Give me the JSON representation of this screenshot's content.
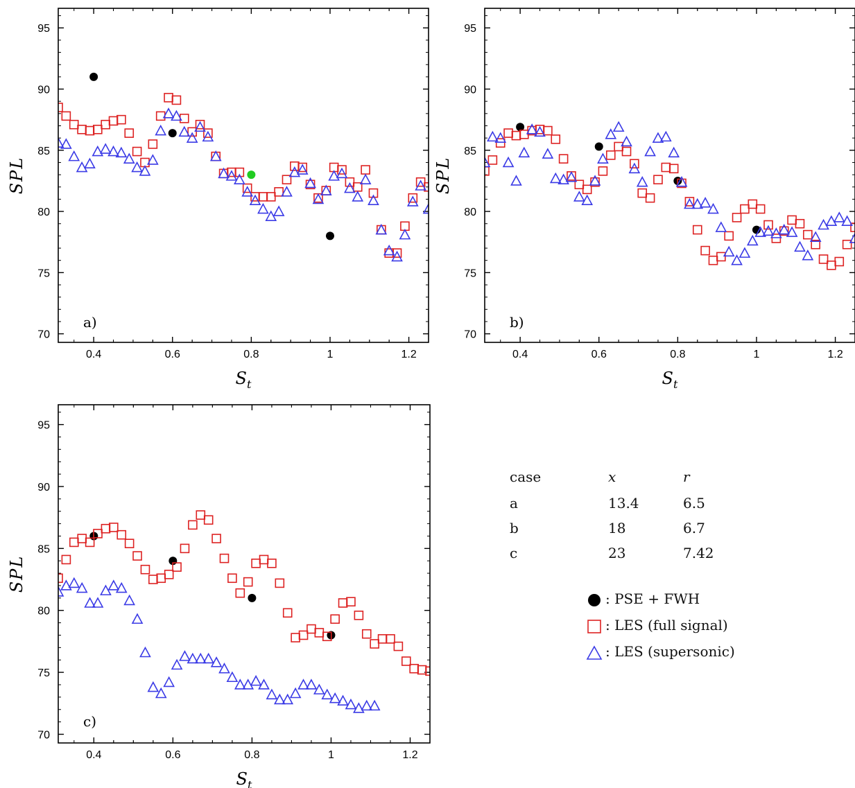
{
  "colors": {
    "pse": "#000000",
    "les_full": "#dd2222",
    "les_super": "#3a3ae6",
    "extra_point": "#22cc22"
  },
  "axes": {
    "xlabel_main": "S",
    "xlabel_sub": "t",
    "ylabel": "SPL",
    "xticks": [
      "0.4",
      "0.6",
      "0.8",
      "1",
      "1.2"
    ],
    "yticks": [
      "70",
      "75",
      "80",
      "85",
      "90",
      "95"
    ],
    "xlim": [
      0.31,
      1.25
    ],
    "ylim": [
      69.3,
      96.6
    ]
  },
  "param_table": {
    "headers": [
      "case",
      "x",
      "r"
    ],
    "rows": [
      [
        "a",
        "13.4",
        "6.5"
      ],
      [
        "b",
        "18",
        "6.7"
      ],
      [
        "c",
        "23",
        "7.42"
      ]
    ]
  },
  "legend": [
    {
      "symbol": "circle",
      "label": ": PSE + FWH"
    },
    {
      "symbol": "square",
      "label": ": LES (full signal)"
    },
    {
      "symbol": "triangle",
      "label": ": LES (supersonic)"
    }
  ],
  "chart_data": [
    {
      "type": "scatter",
      "panel_label": "a)",
      "xlim": [
        0.31,
        1.25
      ],
      "ylim": [
        69.3,
        96.6
      ],
      "series": [
        {
          "name": "PSE + FWH",
          "marker": "circle",
          "x": [
            0.4,
            0.6,
            1.0
          ],
          "y": [
            91.0,
            86.4,
            78.0
          ]
        },
        {
          "marker": "circle-green",
          "x": [
            0.8
          ],
          "y": [
            83.0
          ]
        },
        {
          "name": "LES (full signal)",
          "marker": "square",
          "x": [
            0.31,
            0.33,
            0.35,
            0.37,
            0.39,
            0.41,
            0.43,
            0.45,
            0.47,
            0.49,
            0.51,
            0.53,
            0.55,
            0.57,
            0.59,
            0.61,
            0.63,
            0.65,
            0.67,
            0.69,
            0.71,
            0.73,
            0.75,
            0.77,
            0.79,
            0.81,
            0.83,
            0.85,
            0.87,
            0.89,
            0.91,
            0.93,
            0.95,
            0.97,
            0.99,
            1.01,
            1.03,
            1.05,
            1.07,
            1.09,
            1.11,
            1.13,
            1.15,
            1.17,
            1.19,
            1.21,
            1.23,
            1.25
          ],
          "y": [
            88.5,
            87.8,
            87.1,
            86.7,
            86.6,
            86.7,
            87.1,
            87.4,
            87.5,
            86.4,
            84.9,
            84.0,
            85.5,
            87.8,
            89.3,
            89.1,
            87.6,
            86.5,
            87.1,
            86.4,
            84.5,
            83.1,
            83.2,
            83.2,
            81.9,
            81.2,
            81.2,
            81.2,
            81.6,
            82.6,
            83.7,
            83.6,
            82.2,
            81.1,
            81.7,
            83.6,
            83.4,
            82.4,
            82.0,
            83.4,
            81.5,
            78.5,
            76.6,
            76.6,
            78.8,
            81.1,
            82.4,
            82.0
          ]
        },
        {
          "name": "LES (supersonic)",
          "marker": "triangle",
          "x": [
            0.31,
            0.33,
            0.35,
            0.37,
            0.39,
            0.41,
            0.43,
            0.45,
            0.47,
            0.49,
            0.51,
            0.53,
            0.55,
            0.57,
            0.59,
            0.61,
            0.63,
            0.65,
            0.67,
            0.69,
            0.71,
            0.73,
            0.75,
            0.77,
            0.79,
            0.81,
            0.83,
            0.85,
            0.87,
            0.89,
            0.91,
            0.93,
            0.95,
            0.97,
            0.99,
            1.01,
            1.03,
            1.05,
            1.07,
            1.09,
            1.11,
            1.13,
            1.15,
            1.17,
            1.19,
            1.21,
            1.23,
            1.25
          ],
          "y": [
            85.6,
            85.5,
            84.5,
            83.6,
            83.9,
            84.9,
            85.1,
            84.9,
            84.8,
            84.3,
            83.6,
            83.3,
            84.2,
            86.6,
            88.0,
            87.8,
            86.5,
            86.0,
            86.9,
            86.1,
            84.5,
            83.1,
            82.9,
            82.6,
            81.6,
            80.9,
            80.2,
            79.6,
            80.0,
            81.6,
            83.2,
            83.4,
            82.3,
            81.0,
            81.7,
            82.9,
            83.1,
            81.9,
            81.2,
            82.6,
            80.9,
            78.5,
            76.8,
            76.3,
            78.1,
            80.8,
            82.1,
            80.2
          ]
        }
      ]
    },
    {
      "type": "scatter",
      "panel_label": "b)",
      "xlim": [
        0.31,
        1.25
      ],
      "ylim": [
        69.3,
        96.6
      ],
      "series": [
        {
          "name": "PSE + FWH",
          "marker": "circle",
          "x": [
            0.4,
            0.6,
            0.8,
            1.0
          ],
          "y": [
            86.9,
            85.3,
            82.5,
            78.5
          ]
        },
        {
          "name": "LES (full signal)",
          "marker": "square",
          "x": [
            0.31,
            0.33,
            0.35,
            0.37,
            0.39,
            0.41,
            0.43,
            0.45,
            0.47,
            0.49,
            0.51,
            0.53,
            0.55,
            0.57,
            0.59,
            0.61,
            0.63,
            0.65,
            0.67,
            0.69,
            0.71,
            0.73,
            0.75,
            0.77,
            0.79,
            0.81,
            0.83,
            0.85,
            0.87,
            0.89,
            0.91,
            0.93,
            0.95,
            0.97,
            0.99,
            1.01,
            1.03,
            1.05,
            1.07,
            1.09,
            1.11,
            1.13,
            1.15,
            1.17,
            1.19,
            1.21,
            1.23,
            1.25
          ],
          "y": [
            83.3,
            84.2,
            85.6,
            86.4,
            86.2,
            86.3,
            86.6,
            86.7,
            86.6,
            85.9,
            84.3,
            82.9,
            82.2,
            81.8,
            82.4,
            83.3,
            84.6,
            85.3,
            84.9,
            83.9,
            81.5,
            81.1,
            82.6,
            83.6,
            83.5,
            82.3,
            80.8,
            78.5,
            76.8,
            76.0,
            76.3,
            78.0,
            79.5,
            80.2,
            80.6,
            80.2,
            78.9,
            77.8,
            78.4,
            79.3,
            79.0,
            78.1,
            77.3,
            76.1,
            75.6,
            75.9,
            77.3,
            78.7
          ]
        },
        {
          "name": "LES (supersonic)",
          "marker": "triangle",
          "x": [
            0.31,
            0.33,
            0.35,
            0.37,
            0.39,
            0.41,
            0.43,
            0.45,
            0.47,
            0.49,
            0.51,
            0.53,
            0.55,
            0.57,
            0.59,
            0.61,
            0.63,
            0.65,
            0.67,
            0.69,
            0.71,
            0.73,
            0.75,
            0.77,
            0.79,
            0.81,
            0.83,
            0.85,
            0.87,
            0.89,
            0.91,
            0.93,
            0.95,
            0.97,
            0.99,
            1.01,
            1.03,
            1.05,
            1.07,
            1.09,
            1.11,
            1.13,
            1.15,
            1.17,
            1.19,
            1.21,
            1.23,
            1.25
          ],
          "y": [
            84.0,
            86.1,
            86.0,
            84.0,
            82.5,
            84.8,
            86.7,
            86.5,
            84.7,
            82.7,
            82.6,
            82.8,
            81.2,
            80.9,
            82.5,
            84.3,
            86.3,
            86.9,
            85.7,
            83.5,
            82.4,
            84.9,
            86.0,
            86.1,
            84.8,
            82.4,
            80.6,
            80.6,
            80.7,
            80.2,
            78.7,
            76.7,
            76.0,
            76.6,
            77.6,
            78.3,
            78.4,
            78.2,
            78.5,
            78.3,
            77.1,
            76.4,
            77.9,
            78.9,
            79.2,
            79.5,
            79.2,
            77.8
          ]
        }
      ]
    },
    {
      "type": "scatter",
      "panel_label": "c)",
      "xlim": [
        0.31,
        1.25
      ],
      "ylim": [
        69.3,
        96.6
      ],
      "series": [
        {
          "name": "PSE + FWH",
          "marker": "circle",
          "x": [
            0.4,
            0.6,
            0.8,
            1.0
          ],
          "y": [
            86.0,
            84.0,
            81.0,
            78.0
          ]
        },
        {
          "name": "LES (full signal)",
          "marker": "square",
          "x": [
            0.31,
            0.33,
            0.35,
            0.37,
            0.39,
            0.41,
            0.43,
            0.45,
            0.47,
            0.49,
            0.51,
            0.53,
            0.55,
            0.57,
            0.59,
            0.61,
            0.63,
            0.65,
            0.67,
            0.69,
            0.71,
            0.73,
            0.75,
            0.77,
            0.79,
            0.81,
            0.83,
            0.85,
            0.87,
            0.89,
            0.91,
            0.93,
            0.95,
            0.97,
            0.99,
            1.01,
            1.03,
            1.05,
            1.07,
            1.09,
            1.11,
            1.13,
            1.15,
            1.17,
            1.19,
            1.21,
            1.23,
            1.25
          ],
          "y": [
            82.6,
            84.1,
            85.5,
            85.8,
            85.5,
            86.2,
            86.6,
            86.7,
            86.1,
            85.4,
            84.4,
            83.3,
            82.5,
            82.6,
            82.9,
            83.5,
            85.0,
            86.9,
            87.7,
            87.3,
            85.8,
            84.2,
            82.6,
            81.4,
            82.3,
            83.8,
            84.1,
            83.8,
            82.2,
            79.8,
            77.8,
            78.0,
            78.5,
            78.2,
            77.9,
            79.3,
            80.6,
            80.7,
            79.6,
            78.1,
            77.3,
            77.7,
            77.7,
            77.1,
            75.9,
            75.3,
            75.2,
            75.1
          ]
        },
        {
          "name": "LES (supersonic)",
          "marker": "triangle",
          "x": [
            0.31,
            0.33,
            0.35,
            0.37,
            0.39,
            0.41,
            0.43,
            0.45,
            0.47,
            0.49,
            0.51,
            0.53,
            0.55,
            0.57,
            0.59,
            0.61,
            0.63,
            0.65,
            0.67,
            0.69,
            0.71,
            0.73,
            0.75,
            0.77,
            0.79,
            0.81,
            0.83,
            0.85,
            0.87,
            0.89,
            0.91,
            0.93,
            0.95,
            0.97,
            0.99,
            1.01,
            1.03,
            1.05,
            1.07,
            1.09,
            1.11
          ],
          "y": [
            81.5,
            82.0,
            82.2,
            81.8,
            80.6,
            80.6,
            81.6,
            82.0,
            81.8,
            80.8,
            79.3,
            76.6,
            73.8,
            73.3,
            74.2,
            75.6,
            76.3,
            76.1,
            76.1,
            76.1,
            75.8,
            75.3,
            74.6,
            74.0,
            74.0,
            74.3,
            74.0,
            73.2,
            72.8,
            72.8,
            73.3,
            74.0,
            74.0,
            73.6,
            73.2,
            72.9,
            72.7,
            72.4,
            72.1,
            72.3,
            72.3
          ]
        }
      ]
    }
  ]
}
